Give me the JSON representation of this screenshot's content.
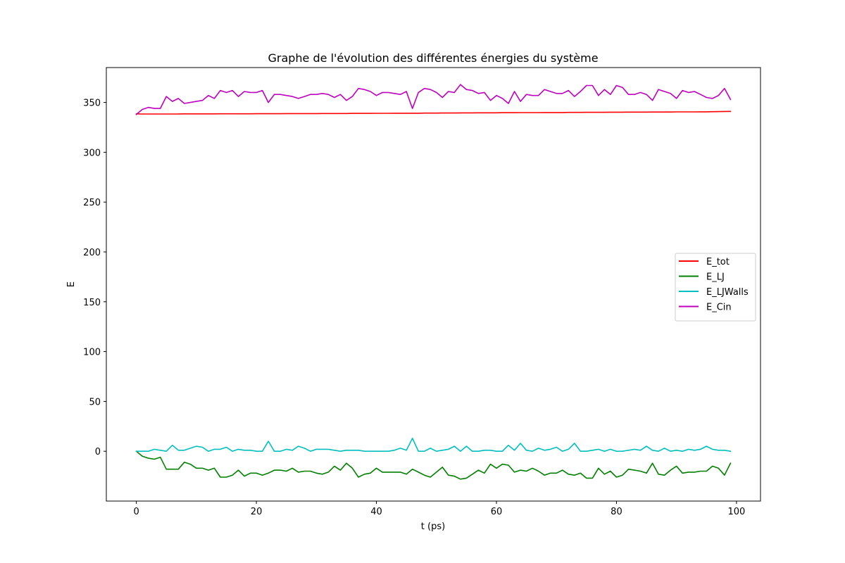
{
  "chart_data": {
    "type": "line",
    "title": "Graphe de l'évolution des différentes énergies du système",
    "xlabel": "t (ps)",
    "ylabel": "E",
    "xlim": [
      -5,
      104
    ],
    "ylim": [
      -50,
      385
    ],
    "xticks": [
      0,
      20,
      40,
      60,
      80,
      100
    ],
    "yticks": [
      0,
      50,
      100,
      150,
      200,
      250,
      300,
      350
    ],
    "grid": false,
    "legend_position": "center-right",
    "x": [
      0,
      1,
      2,
      3,
      4,
      5,
      6,
      7,
      8,
      9,
      10,
      11,
      12,
      13,
      14,
      15,
      16,
      17,
      18,
      19,
      20,
      21,
      22,
      23,
      24,
      25,
      26,
      27,
      28,
      29,
      30,
      31,
      32,
      33,
      34,
      35,
      36,
      37,
      38,
      39,
      40,
      41,
      42,
      43,
      44,
      45,
      46,
      47,
      48,
      49,
      50,
      51,
      52,
      53,
      54,
      55,
      56,
      57,
      58,
      59,
      60,
      61,
      62,
      63,
      64,
      65,
      66,
      67,
      68,
      69,
      70,
      71,
      72,
      73,
      74,
      75,
      76,
      77,
      78,
      79,
      80,
      81,
      82,
      83,
      84,
      85,
      86,
      87,
      88,
      89,
      90,
      91,
      92,
      93,
      94,
      95,
      96,
      97,
      98,
      99
    ],
    "series": [
      {
        "name": "E_tot",
        "color": "#ff0000",
        "values": [
          338.5,
          338.4,
          338.4,
          338.4,
          338.4,
          338.4,
          338.4,
          338.4,
          338.5,
          338.5,
          338.5,
          338.5,
          338.5,
          338.5,
          338.6,
          338.6,
          338.6,
          338.6,
          338.6,
          338.6,
          338.7,
          338.7,
          338.7,
          338.7,
          338.7,
          338.8,
          338.8,
          338.8,
          338.8,
          338.8,
          338.8,
          338.9,
          338.9,
          338.9,
          338.9,
          338.9,
          339.0,
          339.0,
          339.0,
          339.0,
          339.1,
          339.1,
          339.1,
          339.2,
          339.2,
          339.2,
          339.2,
          339.2,
          339.3,
          339.3,
          339.3,
          339.4,
          339.4,
          339.4,
          339.5,
          339.5,
          339.5,
          339.6,
          339.6,
          339.6,
          339.6,
          339.7,
          339.7,
          339.7,
          339.8,
          339.8,
          339.8,
          339.8,
          339.9,
          339.9,
          339.9,
          339.9,
          340.0,
          340.0,
          340.0,
          340.1,
          340.1,
          340.1,
          340.1,
          340.2,
          340.2,
          340.2,
          340.3,
          340.3,
          340.3,
          340.3,
          340.4,
          340.4,
          340.4,
          340.4,
          340.5,
          340.5,
          340.5,
          340.5,
          340.6,
          340.6,
          340.7,
          340.8,
          340.9,
          341.0
        ]
      },
      {
        "name": "E_LJ",
        "color": "#008000",
        "values": [
          0,
          -5,
          -7,
          -8,
          -6,
          -18,
          -18,
          -18,
          -11,
          -13,
          -17,
          -17,
          -19,
          -17,
          -26,
          -26,
          -24,
          -19,
          -25,
          -22,
          -22,
          -24,
          -22,
          -19,
          -19,
          -20,
          -17,
          -21,
          -20,
          -20,
          -22,
          -23,
          -21,
          -15,
          -19,
          -12,
          -17,
          -26,
          -23,
          -22,
          -17,
          -21,
          -21,
          -21,
          -21,
          -23,
          -18,
          -21,
          -24,
          -26,
          -21,
          -16,
          -24,
          -25,
          -28,
          -27,
          -23,
          -19,
          -22,
          -13,
          -17,
          -13,
          -14,
          -21,
          -19,
          -20,
          -17,
          -20,
          -24,
          -22,
          -22,
          -19,
          -23,
          -24,
          -22,
          -27,
          -27,
          -17,
          -23,
          -20,
          -26,
          -24,
          -18,
          -19,
          -20,
          -22,
          -12,
          -23,
          -24,
          -19,
          -15,
          -22,
          -21,
          -21,
          -20,
          -20,
          -15,
          -17,
          -24,
          -12
        ]
      },
      {
        "name": "E_LJWalls",
        "color": "#00bfbf",
        "values": [
          0,
          0,
          0,
          2,
          1,
          0,
          6,
          1,
          1,
          3,
          5,
          4,
          0,
          2,
          2,
          4,
          0,
          2,
          1,
          1,
          0,
          0,
          10,
          0,
          0,
          2,
          1,
          5,
          3,
          0,
          2,
          2,
          2,
          1,
          0,
          1,
          1,
          1,
          0,
          0,
          0,
          0,
          0,
          1,
          3,
          1,
          13,
          0,
          0,
          3,
          0,
          1,
          2,
          5,
          0,
          5,
          0,
          0,
          1,
          1,
          0,
          0,
          6,
          1,
          8,
          1,
          0,
          3,
          1,
          2,
          4,
          0,
          2,
          8,
          0,
          0,
          1,
          2,
          0,
          2,
          0,
          0,
          1,
          2,
          1,
          5,
          1,
          0,
          3,
          0,
          1,
          0,
          2,
          1,
          2,
          5,
          2,
          1,
          1,
          0
        ]
      },
      {
        "name": "E_Cin",
        "color": "#bf00bf",
        "values": [
          338,
          343,
          345,
          344,
          344,
          356,
          351,
          354,
          349,
          350,
          351,
          352,
          357,
          354,
          362,
          360,
          362,
          356,
          361,
          360,
          360,
          362,
          350,
          358,
          358,
          357,
          356,
          354,
          356,
          358,
          358,
          359,
          358,
          355,
          358,
          352,
          356,
          364,
          363,
          361,
          357,
          360,
          360,
          359,
          358,
          361,
          344,
          360,
          364,
          363,
          360,
          355,
          361,
          360,
          368,
          363,
          362,
          359,
          360,
          352,
          357,
          354,
          349,
          361,
          351,
          358,
          357,
          357,
          363,
          361,
          359,
          359,
          362,
          356,
          361,
          367,
          367,
          357,
          363,
          358,
          367,
          365,
          358,
          358,
          360,
          358,
          352,
          363,
          361,
          359,
          354,
          362,
          360,
          361,
          358,
          355,
          354,
          357,
          364,
          353
        ]
      }
    ]
  }
}
